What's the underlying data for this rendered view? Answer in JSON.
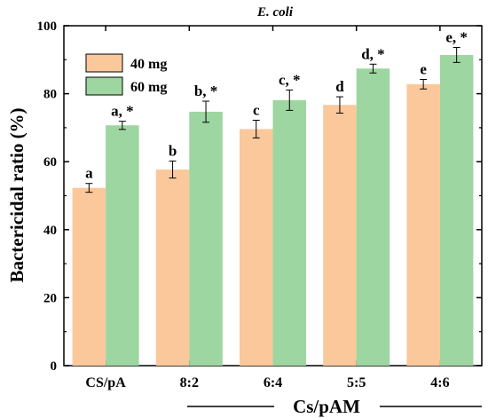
{
  "chart_data": {
    "type": "bar",
    "title": "E. coli",
    "ylabel": "Bactericidal ratio (%)",
    "xlabel": "Cs/pAM",
    "ylim": [
      0,
      100
    ],
    "yticks": [
      0,
      20,
      40,
      60,
      80,
      100
    ],
    "categories": [
      "CS/pA",
      "8:2",
      "6:4",
      "5:5",
      "4:6"
    ],
    "series": [
      {
        "name": "40 mg",
        "color": "#FAC89B",
        "values": [
          52.3,
          57.7,
          69.6,
          76.7,
          82.8
        ],
        "errors": [
          1.3,
          2.5,
          2.6,
          2.4,
          1.4
        ],
        "labels": [
          "a",
          "b",
          "c",
          "d",
          "e"
        ]
      },
      {
        "name": "60 mg",
        "color": "#9DD6A0",
        "values": [
          70.7,
          74.7,
          78.1,
          87.4,
          91.4
        ],
        "errors": [
          1.2,
          3.1,
          3.0,
          1.3,
          2.2
        ],
        "labels": [
          "a, *",
          "b, *",
          "c, *",
          "d, *",
          "e, *"
        ]
      }
    ],
    "grid": false,
    "legend": "top-left"
  }
}
